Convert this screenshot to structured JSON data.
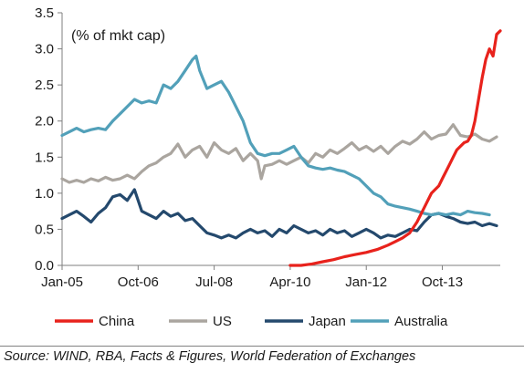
{
  "chart_data": {
    "type": "line",
    "unit_label": "(% of mkt cap)",
    "x_tick_labels": [
      "Jan-05",
      "Oct-06",
      "Jul-08",
      "Apr-10",
      "Jan-12",
      "Oct-13"
    ],
    "x_ticks_month_index": [
      0,
      21,
      42,
      63,
      84,
      105
    ],
    "x_range_month_index": [
      0,
      121
    ],
    "ylim": [
      0,
      3.5
    ],
    "y_ticks": [
      0.0,
      0.5,
      1.0,
      1.5,
      2.0,
      2.5,
      3.0,
      3.5
    ],
    "y_tick_labels": [
      "0.0",
      "0.5",
      "1.0",
      "1.5",
      "2.0",
      "2.5",
      "3.0",
      "3.5"
    ],
    "grid": false,
    "legend_position": "bottom",
    "series": [
      {
        "name": "China",
        "color": "#e8221c",
        "points": [
          [
            63,
            0.0
          ],
          [
            66,
            0.0
          ],
          [
            69,
            0.02
          ],
          [
            72,
            0.05
          ],
          [
            75,
            0.08
          ],
          [
            78,
            0.12
          ],
          [
            81,
            0.15
          ],
          [
            84,
            0.18
          ],
          [
            87,
            0.22
          ],
          [
            90,
            0.28
          ],
          [
            92,
            0.33
          ],
          [
            94,
            0.38
          ],
          [
            96,
            0.45
          ],
          [
            98,
            0.6
          ],
          [
            100,
            0.8
          ],
          [
            102,
            1.0
          ],
          [
            104,
            1.1
          ],
          [
            105,
            1.2
          ],
          [
            106,
            1.3
          ],
          [
            107,
            1.4
          ],
          [
            108,
            1.5
          ],
          [
            109,
            1.6
          ],
          [
            110,
            1.65
          ],
          [
            111,
            1.7
          ],
          [
            112,
            1.72
          ],
          [
            113,
            1.8
          ],
          [
            114,
            2.0
          ],
          [
            115,
            2.3
          ],
          [
            116,
            2.6
          ],
          [
            117,
            2.85
          ],
          [
            118,
            3.0
          ],
          [
            119,
            2.9
          ],
          [
            120,
            3.2
          ],
          [
            121,
            3.25
          ]
        ]
      },
      {
        "name": "US",
        "color": "#aaa59f",
        "points": [
          [
            0,
            1.2
          ],
          [
            2,
            1.15
          ],
          [
            4,
            1.18
          ],
          [
            6,
            1.15
          ],
          [
            8,
            1.2
          ],
          [
            10,
            1.17
          ],
          [
            12,
            1.22
          ],
          [
            14,
            1.18
          ],
          [
            16,
            1.2
          ],
          [
            18,
            1.25
          ],
          [
            20,
            1.2
          ],
          [
            22,
            1.3
          ],
          [
            24,
            1.38
          ],
          [
            26,
            1.42
          ],
          [
            28,
            1.5
          ],
          [
            30,
            1.55
          ],
          [
            32,
            1.68
          ],
          [
            34,
            1.5
          ],
          [
            36,
            1.6
          ],
          [
            38,
            1.65
          ],
          [
            40,
            1.5
          ],
          [
            42,
            1.7
          ],
          [
            44,
            1.6
          ],
          [
            46,
            1.55
          ],
          [
            48,
            1.62
          ],
          [
            50,
            1.45
          ],
          [
            52,
            1.55
          ],
          [
            54,
            1.45
          ],
          [
            55,
            1.2
          ],
          [
            56,
            1.38
          ],
          [
            58,
            1.4
          ],
          [
            60,
            1.45
          ],
          [
            62,
            1.4
          ],
          [
            64,
            1.45
          ],
          [
            66,
            1.5
          ],
          [
            68,
            1.42
          ],
          [
            70,
            1.55
          ],
          [
            72,
            1.5
          ],
          [
            74,
            1.6
          ],
          [
            76,
            1.55
          ],
          [
            78,
            1.62
          ],
          [
            80,
            1.7
          ],
          [
            82,
            1.6
          ],
          [
            84,
            1.65
          ],
          [
            86,
            1.58
          ],
          [
            88,
            1.65
          ],
          [
            90,
            1.55
          ],
          [
            92,
            1.65
          ],
          [
            94,
            1.72
          ],
          [
            96,
            1.68
          ],
          [
            98,
            1.75
          ],
          [
            100,
            1.85
          ],
          [
            102,
            1.75
          ],
          [
            104,
            1.8
          ],
          [
            106,
            1.82
          ],
          [
            108,
            1.95
          ],
          [
            110,
            1.8
          ],
          [
            112,
            1.78
          ],
          [
            114,
            1.82
          ],
          [
            116,
            1.75
          ],
          [
            118,
            1.72
          ],
          [
            120,
            1.78
          ]
        ]
      },
      {
        "name": "Japan",
        "color": "#24496d",
        "points": [
          [
            0,
            0.65
          ],
          [
            2,
            0.7
          ],
          [
            4,
            0.75
          ],
          [
            6,
            0.68
          ],
          [
            8,
            0.6
          ],
          [
            10,
            0.72
          ],
          [
            12,
            0.8
          ],
          [
            14,
            0.95
          ],
          [
            16,
            0.98
          ],
          [
            18,
            0.9
          ],
          [
            20,
            1.05
          ],
          [
            22,
            0.75
          ],
          [
            24,
            0.7
          ],
          [
            26,
            0.65
          ],
          [
            28,
            0.75
          ],
          [
            30,
            0.68
          ],
          [
            32,
            0.72
          ],
          [
            34,
            0.62
          ],
          [
            36,
            0.65
          ],
          [
            38,
            0.55
          ],
          [
            40,
            0.45
          ],
          [
            42,
            0.42
          ],
          [
            44,
            0.38
          ],
          [
            46,
            0.42
          ],
          [
            48,
            0.38
          ],
          [
            50,
            0.45
          ],
          [
            52,
            0.5
          ],
          [
            54,
            0.45
          ],
          [
            56,
            0.48
          ],
          [
            58,
            0.4
          ],
          [
            60,
            0.5
          ],
          [
            62,
            0.45
          ],
          [
            64,
            0.55
          ],
          [
            66,
            0.5
          ],
          [
            68,
            0.45
          ],
          [
            70,
            0.48
          ],
          [
            72,
            0.42
          ],
          [
            74,
            0.5
          ],
          [
            76,
            0.45
          ],
          [
            78,
            0.48
          ],
          [
            80,
            0.4
          ],
          [
            82,
            0.45
          ],
          [
            84,
            0.5
          ],
          [
            86,
            0.45
          ],
          [
            88,
            0.38
          ],
          [
            90,
            0.42
          ],
          [
            92,
            0.4
          ],
          [
            94,
            0.45
          ],
          [
            96,
            0.5
          ],
          [
            98,
            0.48
          ],
          [
            100,
            0.6
          ],
          [
            102,
            0.7
          ],
          [
            104,
            0.72
          ],
          [
            106,
            0.68
          ],
          [
            108,
            0.65
          ],
          [
            110,
            0.6
          ],
          [
            112,
            0.58
          ],
          [
            114,
            0.6
          ],
          [
            116,
            0.55
          ],
          [
            118,
            0.58
          ],
          [
            120,
            0.55
          ]
        ]
      },
      {
        "name": "Australia",
        "color": "#52a0b9",
        "points": [
          [
            0,
            1.8
          ],
          [
            2,
            1.85
          ],
          [
            4,
            1.9
          ],
          [
            6,
            1.85
          ],
          [
            8,
            1.88
          ],
          [
            10,
            1.9
          ],
          [
            12,
            1.88
          ],
          [
            14,
            2.0
          ],
          [
            16,
            2.1
          ],
          [
            18,
            2.2
          ],
          [
            20,
            2.3
          ],
          [
            22,
            2.25
          ],
          [
            24,
            2.28
          ],
          [
            26,
            2.25
          ],
          [
            28,
            2.5
          ],
          [
            30,
            2.45
          ],
          [
            32,
            2.55
          ],
          [
            34,
            2.7
          ],
          [
            36,
            2.85
          ],
          [
            37,
            2.9
          ],
          [
            38,
            2.7
          ],
          [
            40,
            2.45
          ],
          [
            42,
            2.5
          ],
          [
            44,
            2.55
          ],
          [
            46,
            2.4
          ],
          [
            48,
            2.2
          ],
          [
            50,
            2.0
          ],
          [
            52,
            1.7
          ],
          [
            54,
            1.55
          ],
          [
            56,
            1.52
          ],
          [
            58,
            1.55
          ],
          [
            60,
            1.55
          ],
          [
            62,
            1.6
          ],
          [
            64,
            1.65
          ],
          [
            66,
            1.5
          ],
          [
            68,
            1.38
          ],
          [
            70,
            1.35
          ],
          [
            72,
            1.33
          ],
          [
            74,
            1.35
          ],
          [
            76,
            1.32
          ],
          [
            78,
            1.3
          ],
          [
            80,
            1.25
          ],
          [
            82,
            1.2
          ],
          [
            84,
            1.1
          ],
          [
            86,
            1.0
          ],
          [
            88,
            0.95
          ],
          [
            90,
            0.85
          ],
          [
            92,
            0.82
          ],
          [
            94,
            0.8
          ],
          [
            96,
            0.78
          ],
          [
            98,
            0.75
          ],
          [
            100,
            0.72
          ],
          [
            102,
            0.7
          ],
          [
            104,
            0.72
          ],
          [
            106,
            0.7
          ],
          [
            108,
            0.72
          ],
          [
            110,
            0.7
          ],
          [
            112,
            0.75
          ],
          [
            114,
            0.73
          ],
          [
            116,
            0.72
          ],
          [
            118,
            0.7
          ]
        ]
      }
    ]
  },
  "legend": [
    {
      "label": "China",
      "color": "#e8221c"
    },
    {
      "label": "US",
      "color": "#aaa59f"
    },
    {
      "label": "Japan",
      "color": "#24496d"
    },
    {
      "label": "Australia",
      "color": "#52a0b9"
    }
  ],
  "source_note": "Source: WIND, RBA, Facts & Figures, World Federation of Exchanges"
}
